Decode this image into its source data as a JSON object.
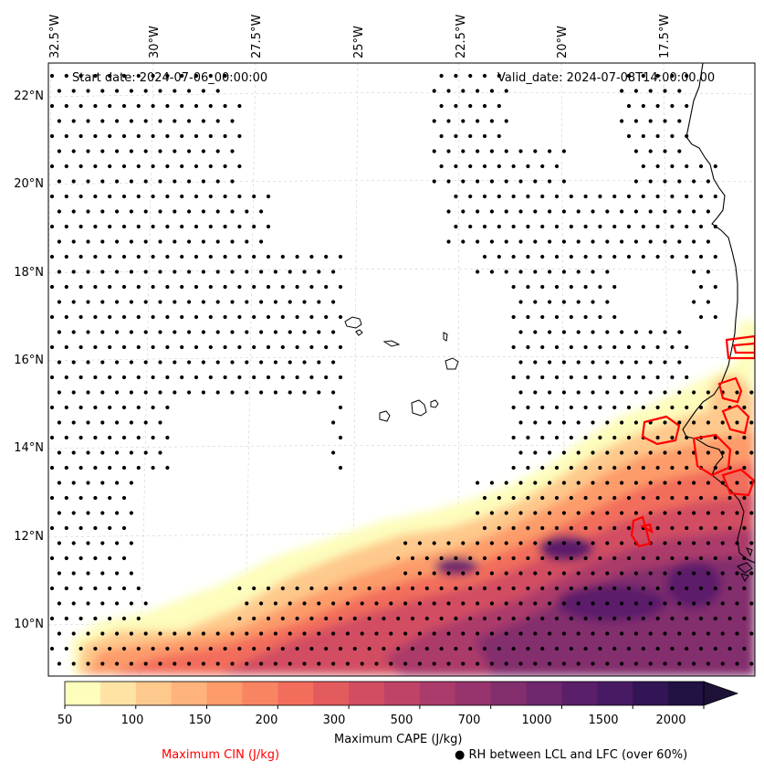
{
  "map": {
    "start_date": "Start date: 2024-07-06_00:00:00",
    "valid_date": "Valid_date: 2024-07-08T14:00:00.00",
    "lon_labels": [
      "32.5°W",
      "30°W",
      "27.5°W",
      "25°W",
      "22.5°W",
      "20°W",
      "17.5°W"
    ],
    "lat_labels": [
      "22°N",
      "20°N",
      "18°N",
      "16°N",
      "14°N",
      "12°N",
      "10°N"
    ],
    "lon_values": [
      -32.5,
      -30,
      -27.5,
      -25,
      -22.5,
      -20,
      -17.5
    ],
    "lat_values": [
      22,
      20,
      18,
      16,
      14,
      12,
      10
    ]
  },
  "colorbar": {
    "title": "Maximum CAPE (J/kg)",
    "tick_labels": [
      "50",
      "100",
      "150",
      "200",
      "300",
      "500",
      "700",
      "1000",
      "1500",
      "2000"
    ],
    "levels": [
      50,
      75,
      100,
      125,
      150,
      175,
      200,
      250,
      300,
      400,
      500,
      600,
      700,
      850,
      1000,
      1250,
      1500,
      1750,
      2000
    ],
    "colors": [
      "#fdfdbc",
      "#fee3a4",
      "#fec98c",
      "#feb27c",
      "#fd9b6a",
      "#f98462",
      "#f26d5c",
      "#e45b5d",
      "#d24d62",
      "#bf4366",
      "#ab3b6a",
      "#97346d",
      "#832e6d",
      "#6f276d",
      "#5b1f6a",
      "#481a63",
      "#321555",
      "#221143",
      "#1d1138"
    ],
    "extend": "max"
  },
  "legend": {
    "cin_label": "Maximum CIN (J/kg)",
    "cin_color": "#ff0000",
    "rh_label": "● RH between LCL and LFC (over 60%)"
  }
}
